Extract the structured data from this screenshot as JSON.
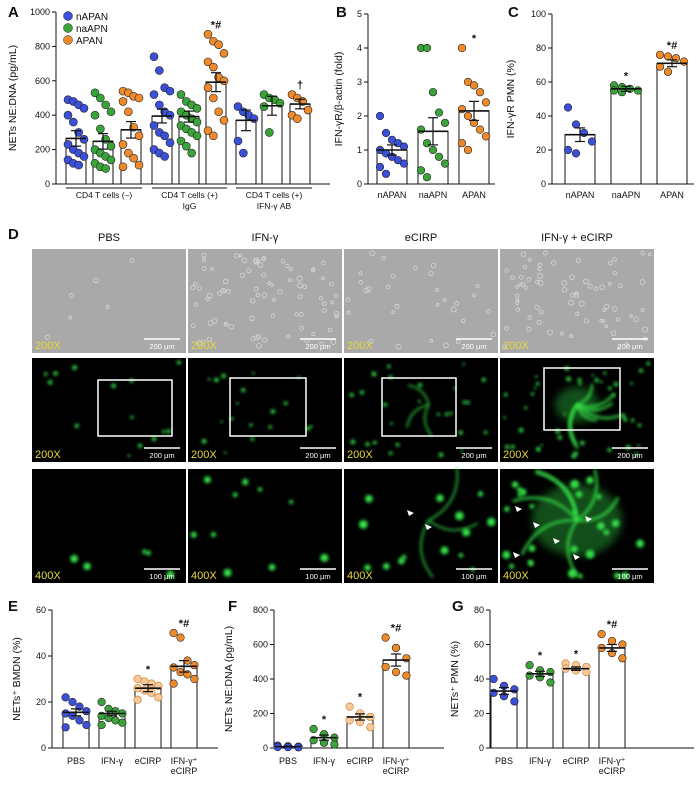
{
  "colors": {
    "blue": "#3b4fd8",
    "green": "#3aa33a",
    "orange": "#ef8a2b",
    "light_orange": "#f6c89a",
    "white": "#ffffff",
    "fluor": "#35e04a",
    "scale_label": "#e8d83a"
  },
  "chart_data": [
    {
      "id": "A",
      "type": "scatter-bar",
      "title": "",
      "ylabel": "NETs NE:DNA (pg/mL)",
      "ylim": [
        0,
        1000
      ],
      "yticks": [
        0,
        200,
        400,
        600,
        800,
        1000
      ],
      "legend": {
        "placement": "top-left",
        "entries": [
          {
            "name": "nAPAN",
            "color": "#3b4fd8"
          },
          {
            "name": "naAPN",
            "color": "#3aa33a"
          },
          {
            "name": "APAN",
            "color": "#ef8a2b"
          }
        ]
      },
      "group_labels": [
        {
          "line1": "CD4 T cells (–)",
          "line2": ""
        },
        {
          "line1": "CD4 T cells (+)",
          "line2": "IgG"
        },
        {
          "line1": "CD4 T cells (+)",
          "line2": "IFN-γ AB"
        }
      ],
      "bars": [
        {
          "group": 0,
          "color": "#3b4fd8",
          "mean": 265,
          "sem": 45,
          "sig": "",
          "points": [
            490,
            480,
            460,
            440,
            400,
            360,
            300,
            260,
            230,
            200,
            180,
            160,
            140,
            120,
            110
          ]
        },
        {
          "group": 0,
          "color": "#3aa33a",
          "mean": 248,
          "sem": 45,
          "sig": "",
          "points": [
            530,
            500,
            460,
            420,
            400,
            320,
            260,
            220,
            200,
            180,
            160,
            140,
            120,
            100,
            90
          ]
        },
        {
          "group": 0,
          "color": "#ef8a2b",
          "mean": 315,
          "sem": 48,
          "sig": "",
          "points": [
            540,
            530,
            510,
            500,
            480,
            420,
            330,
            280,
            230,
            180,
            150,
            110,
            100
          ]
        },
        {
          "group": 1,
          "color": "#3b4fd8",
          "mean": 395,
          "sem": 40,
          "sig": "",
          "points": [
            740,
            660,
            560,
            540,
            520,
            460,
            420,
            400,
            340,
            300,
            280,
            240,
            200,
            180,
            160
          ]
        },
        {
          "group": 1,
          "color": "#3aa33a",
          "mean": 392,
          "sem": 32,
          "sig": "",
          "points": [
            520,
            480,
            460,
            440,
            420,
            400,
            380,
            360,
            340,
            320,
            300,
            280,
            250,
            220,
            180
          ]
        },
        {
          "group": 1,
          "color": "#ef8a2b",
          "mean": 592,
          "sem": 55,
          "sig": "*#",
          "points": [
            870,
            830,
            810,
            760,
            710,
            680,
            620,
            600,
            560,
            500,
            420,
            370,
            310,
            280
          ]
        },
        {
          "group": 2,
          "color": "#3b4fd8",
          "mean": 370,
          "sem": 60,
          "sig": "",
          "points": [
            450,
            420,
            400,
            380,
            250,
            180
          ]
        },
        {
          "group": 2,
          "color": "#3aa33a",
          "mean": 455,
          "sem": 55,
          "sig": "",
          "points": [
            520,
            500,
            490,
            470,
            450,
            300
          ]
        },
        {
          "group": 2,
          "color": "#ef8a2b",
          "mean": 465,
          "sem": 28,
          "sig": "†",
          "points": [
            520,
            500,
            480,
            430,
            400,
            380
          ]
        }
      ]
    },
    {
      "id": "B",
      "type": "scatter-bar",
      "title": "",
      "ylabel": "IFN-γR/β-actin (fold)",
      "ylim": [
        0,
        5
      ],
      "yticks": [
        0,
        1,
        2,
        3,
        4,
        5
      ],
      "categories": [
        "nAPAN",
        "naAPN",
        "APAN"
      ],
      "bars": [
        {
          "color": "#3b4fd8",
          "mean": 1.0,
          "sem": 0.15,
          "sig": "",
          "points": [
            2.0,
            1.5,
            1.3,
            1.2,
            1.1,
            1.0,
            0.9,
            0.8,
            0.7,
            0.6,
            0.5,
            0.3
          ]
        },
        {
          "color": "#3aa33a",
          "mean": 1.55,
          "sem": 0.4,
          "sig": "",
          "points": [
            4.0,
            4.0,
            2.7,
            2.1,
            1.8,
            1.6,
            1.2,
            1.0,
            0.8,
            0.6,
            0.4,
            0.2
          ]
        },
        {
          "color": "#ef8a2b",
          "mean": 2.15,
          "sem": 0.28,
          "sig": "*",
          "points": [
            4.0,
            3.0,
            2.9,
            2.7,
            2.4,
            2.2,
            2.0,
            1.8,
            1.6,
            1.4,
            1.2,
            1.0
          ]
        }
      ]
    },
    {
      "id": "C",
      "type": "scatter-bar",
      "title": "",
      "ylabel": "IFN-γR PMN (%)",
      "ylim": [
        0,
        100
      ],
      "yticks": [
        0,
        20,
        40,
        60,
        80,
        100
      ],
      "categories": [
        "nAPAN",
        "naAPN",
        "APAN"
      ],
      "bars": [
        {
          "color": "#3b4fd8",
          "mean": 29,
          "sem": 4,
          "sig": "",
          "points": [
            45,
            35,
            30,
            25,
            20,
            18
          ]
        },
        {
          "color": "#3aa33a",
          "mean": 56,
          "sem": 1.5,
          "sig": "*",
          "points": [
            58,
            57,
            56,
            55,
            55,
            54
          ]
        },
        {
          "color": "#ef8a2b",
          "mean": 71,
          "sem": 2,
          "sig": "*#",
          "points": [
            76,
            75,
            74,
            72,
            69,
            66
          ]
        }
      ]
    },
    {
      "id": "E",
      "type": "scatter-bar",
      "title": "",
      "ylabel": "NETs⁺ BMDN (%)",
      "ylim": [
        0,
        60
      ],
      "yticks": [
        0,
        20,
        40,
        60
      ],
      "categories": [
        "PBS",
        "IFN-γ",
        "eCIRP",
        "IFN-γ⁺ eCIRP"
      ],
      "bars": [
        {
          "color": "#3b4fd8",
          "mean": 15.5,
          "sem": 1.5,
          "sig": "",
          "points": [
            22,
            20,
            18,
            16,
            15,
            14,
            12,
            10,
            9
          ]
        },
        {
          "color": "#3aa33a",
          "mean": 15,
          "sem": 1,
          "sig": "",
          "points": [
            20,
            17,
            16,
            15,
            14,
            13,
            12,
            11,
            10
          ]
        },
        {
          "color": "#f6c89a",
          "mean": 26,
          "sem": 1.5,
          "sig": "*",
          "points": [
            30,
            29,
            28,
            27,
            26,
            25,
            24,
            22,
            21
          ]
        },
        {
          "color": "#ef8a2b",
          "mean": 35.5,
          "sem": 2.5,
          "sig": "*#",
          "points": [
            50,
            48,
            38,
            36,
            35,
            33,
            32,
            30,
            28
          ]
        }
      ]
    },
    {
      "id": "F",
      "type": "scatter-bar",
      "title": "",
      "ylabel": "NETs NE:DNA (pg/mL)",
      "ylim": [
        0,
        800
      ],
      "yticks": [
        0,
        200,
        400,
        600,
        800
      ],
      "categories": [
        "PBS",
        "IFN-γ",
        "eCIRP",
        "IFN-γ⁺ eCIRP"
      ],
      "bars": [
        {
          "color": "#3b4fd8",
          "mean": 8,
          "sem": 2,
          "sig": "",
          "points": [
            14,
            10,
            8,
            6,
            5,
            4
          ]
        },
        {
          "color": "#3aa33a",
          "mean": 60,
          "sem": 15,
          "sig": "*",
          "points": [
            110,
            80,
            60,
            45,
            30,
            20
          ]
        },
        {
          "color": "#f6c89a",
          "mean": 180,
          "sem": 18,
          "sig": "*",
          "points": [
            240,
            200,
            180,
            160,
            150,
            120
          ]
        },
        {
          "color": "#ef8a2b",
          "mean": 510,
          "sem": 35,
          "sig": "*#",
          "points": [
            640,
            580,
            520,
            470,
            440,
            420
          ]
        }
      ]
    },
    {
      "id": "G",
      "type": "scatter-bar",
      "title": "",
      "ylabel": "NETs⁺ PMN (%)",
      "ylim": [
        0,
        80
      ],
      "yticks": [
        0,
        20,
        40,
        60,
        80
      ],
      "categories": [
        "PBS",
        "IFN-γ",
        "eCIRP",
        "IFN-γ⁺ eCIRP"
      ],
      "bars": [
        {
          "color": "#3b4fd8",
          "mean": 33,
          "sem": 2,
          "sig": "",
          "points": [
            40,
            36,
            34,
            32,
            30,
            27
          ]
        },
        {
          "color": "#3aa33a",
          "mean": 43,
          "sem": 1.5,
          "sig": "*",
          "points": [
            48,
            45,
            44,
            42,
            41,
            38
          ]
        },
        {
          "color": "#f6c89a",
          "mean": 46,
          "sem": 1,
          "sig": "*",
          "points": [
            49,
            48,
            47,
            46,
            45,
            44
          ]
        },
        {
          "color": "#ef8a2b",
          "mean": 58,
          "sem": 2,
          "sig": "*#",
          "points": [
            66,
            62,
            60,
            58,
            55,
            52
          ]
        }
      ]
    }
  ],
  "panel_labels": {
    "A": "A",
    "B": "B",
    "C": "C",
    "D": "D",
    "E": "E",
    "F": "F",
    "G": "G"
  },
  "micrographs": {
    "columns": [
      "PBS",
      "IFN-γ",
      "eCIRP",
      "IFN-γ + eCIRP"
    ],
    "rows": [
      {
        "mag": "200X",
        "scale": "200 μm",
        "kind": "brightfield",
        "boxed": false
      },
      {
        "mag": "200X",
        "scale": "200 μm",
        "kind": "fluorescence",
        "boxed": true
      },
      {
        "mag": "400X",
        "scale": "100 μm",
        "kind": "fluorescence-zoom",
        "boxed": false
      }
    ]
  }
}
